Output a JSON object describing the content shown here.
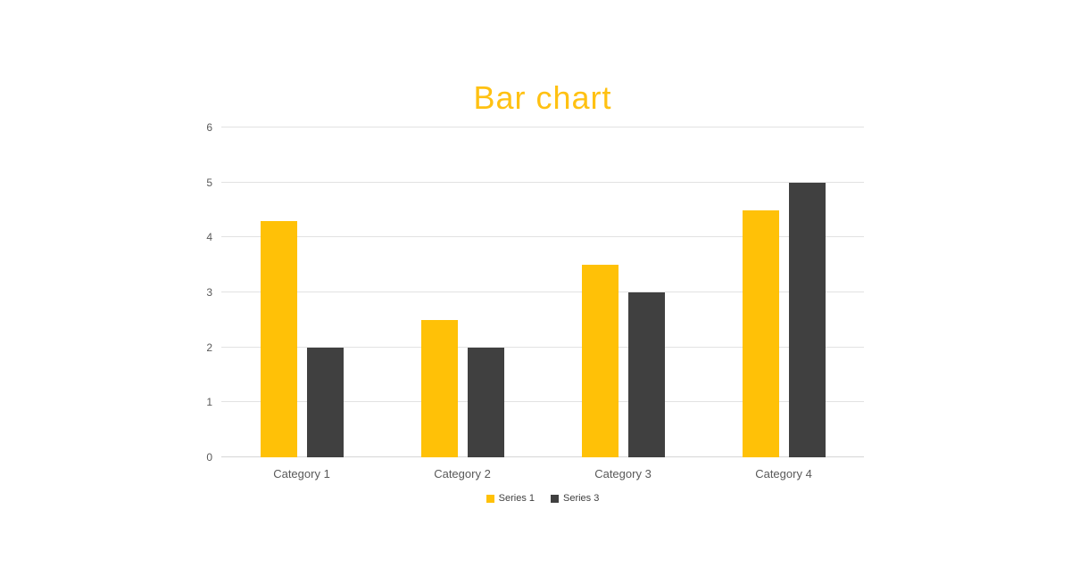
{
  "chart_data": {
    "type": "bar",
    "title": "Bar chart",
    "categories": [
      "Category 1",
      "Category 2",
      "Category 3",
      "Category 4"
    ],
    "series": [
      {
        "name": "Series 1",
        "color": "#FFC107",
        "values": [
          4.3,
          2.5,
          3.5,
          4.5
        ]
      },
      {
        "name": "Series 3",
        "color": "#404040",
        "values": [
          2,
          2,
          3,
          5
        ]
      }
    ],
    "xlabel": "",
    "ylabel": "",
    "ylim": [
      0,
      6
    ],
    "yticks": [
      0,
      1,
      2,
      3,
      4,
      5,
      6
    ],
    "grid": true,
    "legend_position": "bottom"
  },
  "colors": {
    "title": "#FFC112",
    "axis_text": "#595959",
    "legend_text": "#404040",
    "gridline": "#E2E2E2",
    "baseline": "#D6D6D6",
    "background": "#FFFFFF"
  }
}
